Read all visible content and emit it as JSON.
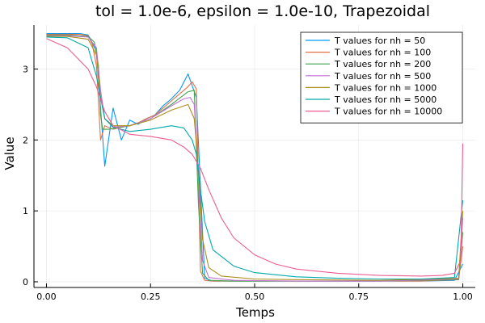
{
  "chart_data": {
    "type": "line",
    "title": "tol = 1.0e-6, epsilon = 1.0e-10, Trapezoidal",
    "xlabel": "Temps",
    "ylabel": "Value",
    "xlim": [
      -0.03,
      1.03
    ],
    "ylim": [
      -0.08,
      3.62
    ],
    "xticks": [
      0.0,
      0.25,
      0.5,
      0.75,
      1.0
    ],
    "xtick_labels": [
      "0.00",
      "0.25",
      "0.50",
      "0.75",
      "1.00"
    ],
    "yticks": [
      0,
      1,
      2,
      3
    ],
    "ytick_labels": [
      "0",
      "1",
      "2",
      "3"
    ],
    "grid": true,
    "legend_position": "top-right",
    "series": [
      {
        "name": "T values for nh = 50",
        "color": "#009AFA",
        "x": [
          0.0,
          0.02,
          0.04,
          0.06,
          0.08,
          0.1,
          0.12,
          0.14,
          0.16,
          0.18,
          0.2,
          0.22,
          0.24,
          0.26,
          0.28,
          0.3,
          0.32,
          0.34,
          0.36,
          0.38,
          0.4,
          0.45,
          0.5,
          0.6,
          0.7,
          0.8,
          0.9,
          0.98,
          1.0
        ],
        "y": [
          3.5,
          3.5,
          3.5,
          3.5,
          3.5,
          3.48,
          3.25,
          1.63,
          2.45,
          2.0,
          2.28,
          2.22,
          2.3,
          2.35,
          2.48,
          2.58,
          2.7,
          2.93,
          2.6,
          0.05,
          0.01,
          0.01,
          0.01,
          0.01,
          0.01,
          0.01,
          0.01,
          0.02,
          0.25
        ]
      },
      {
        "name": "T values for nh = 100",
        "color": "#E36F47",
        "x": [
          0.0,
          0.02,
          0.04,
          0.06,
          0.08,
          0.1,
          0.11,
          0.12,
          0.13,
          0.14,
          0.16,
          0.18,
          0.2,
          0.22,
          0.24,
          0.26,
          0.28,
          0.3,
          0.32,
          0.34,
          0.35,
          0.36,
          0.37,
          0.38,
          0.4,
          0.5,
          0.6,
          0.7,
          0.8,
          0.9,
          0.99,
          1.0
        ],
        "y": [
          3.49,
          3.49,
          3.49,
          3.49,
          3.49,
          3.47,
          3.35,
          3.05,
          2.0,
          2.2,
          2.15,
          2.18,
          2.2,
          2.24,
          2.3,
          2.35,
          2.45,
          2.55,
          2.65,
          2.75,
          2.82,
          2.72,
          0.15,
          0.02,
          0.01,
          0.01,
          0.01,
          0.01,
          0.01,
          0.01,
          0.03,
          0.5
        ]
      },
      {
        "name": "T values for nh = 200",
        "color": "#3EA44E",
        "x": [
          0.0,
          0.05,
          0.1,
          0.115,
          0.125,
          0.13,
          0.135,
          0.15,
          0.2,
          0.25,
          0.3,
          0.34,
          0.355,
          0.365,
          0.375,
          0.39,
          0.45,
          0.6,
          0.8,
          0.99,
          1.0
        ],
        "y": [
          3.48,
          3.48,
          3.46,
          3.38,
          3.05,
          2.35,
          2.15,
          2.15,
          2.2,
          2.3,
          2.5,
          2.68,
          2.7,
          1.1,
          0.12,
          0.02,
          0.01,
          0.01,
          0.01,
          0.03,
          0.7
        ]
      },
      {
        "name": "T values for nh = 500",
        "color": "#C271D2",
        "x": [
          0.0,
          0.05,
          0.1,
          0.12,
          0.13,
          0.14,
          0.16,
          0.2,
          0.25,
          0.3,
          0.33,
          0.345,
          0.355,
          0.365,
          0.375,
          0.39,
          0.45,
          0.6,
          0.8,
          0.99,
          1.0
        ],
        "y": [
          3.47,
          3.47,
          3.45,
          3.3,
          2.7,
          2.3,
          2.18,
          2.2,
          2.3,
          2.48,
          2.58,
          2.6,
          2.5,
          1.5,
          0.3,
          0.06,
          0.02,
          0.01,
          0.01,
          0.04,
          0.9
        ]
      },
      {
        "name": "T values for nh = 1000",
        "color": "#AC8E18",
        "x": [
          0.0,
          0.05,
          0.1,
          0.12,
          0.13,
          0.14,
          0.16,
          0.2,
          0.25,
          0.3,
          0.34,
          0.355,
          0.365,
          0.375,
          0.39,
          0.42,
          0.5,
          0.6,
          0.8,
          0.99,
          1.0
        ],
        "y": [
          3.46,
          3.46,
          3.42,
          3.2,
          2.6,
          2.3,
          2.2,
          2.2,
          2.28,
          2.42,
          2.5,
          2.3,
          1.6,
          0.6,
          0.2,
          0.08,
          0.04,
          0.03,
          0.02,
          0.05,
          1.0
        ]
      },
      {
        "name": "T values for nh = 5000",
        "color": "#00A9AD",
        "x": [
          0.0,
          0.05,
          0.1,
          0.12,
          0.14,
          0.16,
          0.2,
          0.25,
          0.3,
          0.33,
          0.35,
          0.36,
          0.37,
          0.38,
          0.4,
          0.45,
          0.5,
          0.6,
          0.7,
          0.8,
          0.9,
          0.98,
          1.0
        ],
        "y": [
          3.45,
          3.44,
          3.3,
          2.9,
          2.3,
          2.18,
          2.12,
          2.15,
          2.2,
          2.17,
          2.0,
          1.8,
          1.3,
          0.85,
          0.45,
          0.22,
          0.13,
          0.07,
          0.05,
          0.04,
          0.04,
          0.06,
          1.15
        ]
      },
      {
        "name": "T values for nh = 10000",
        "color": "#ED5D92",
        "x": [
          0.0,
          0.05,
          0.1,
          0.12,
          0.14,
          0.16,
          0.2,
          0.25,
          0.3,
          0.33,
          0.35,
          0.37,
          0.39,
          0.42,
          0.45,
          0.5,
          0.55,
          0.6,
          0.7,
          0.8,
          0.9,
          0.95,
          0.98,
          0.995,
          1.0
        ],
        "y": [
          3.43,
          3.3,
          3.0,
          2.75,
          2.4,
          2.2,
          2.08,
          2.05,
          2.0,
          1.9,
          1.8,
          1.6,
          1.3,
          0.9,
          0.62,
          0.38,
          0.25,
          0.18,
          0.12,
          0.09,
          0.08,
          0.09,
          0.12,
          0.3,
          1.95
        ]
      }
    ]
  }
}
